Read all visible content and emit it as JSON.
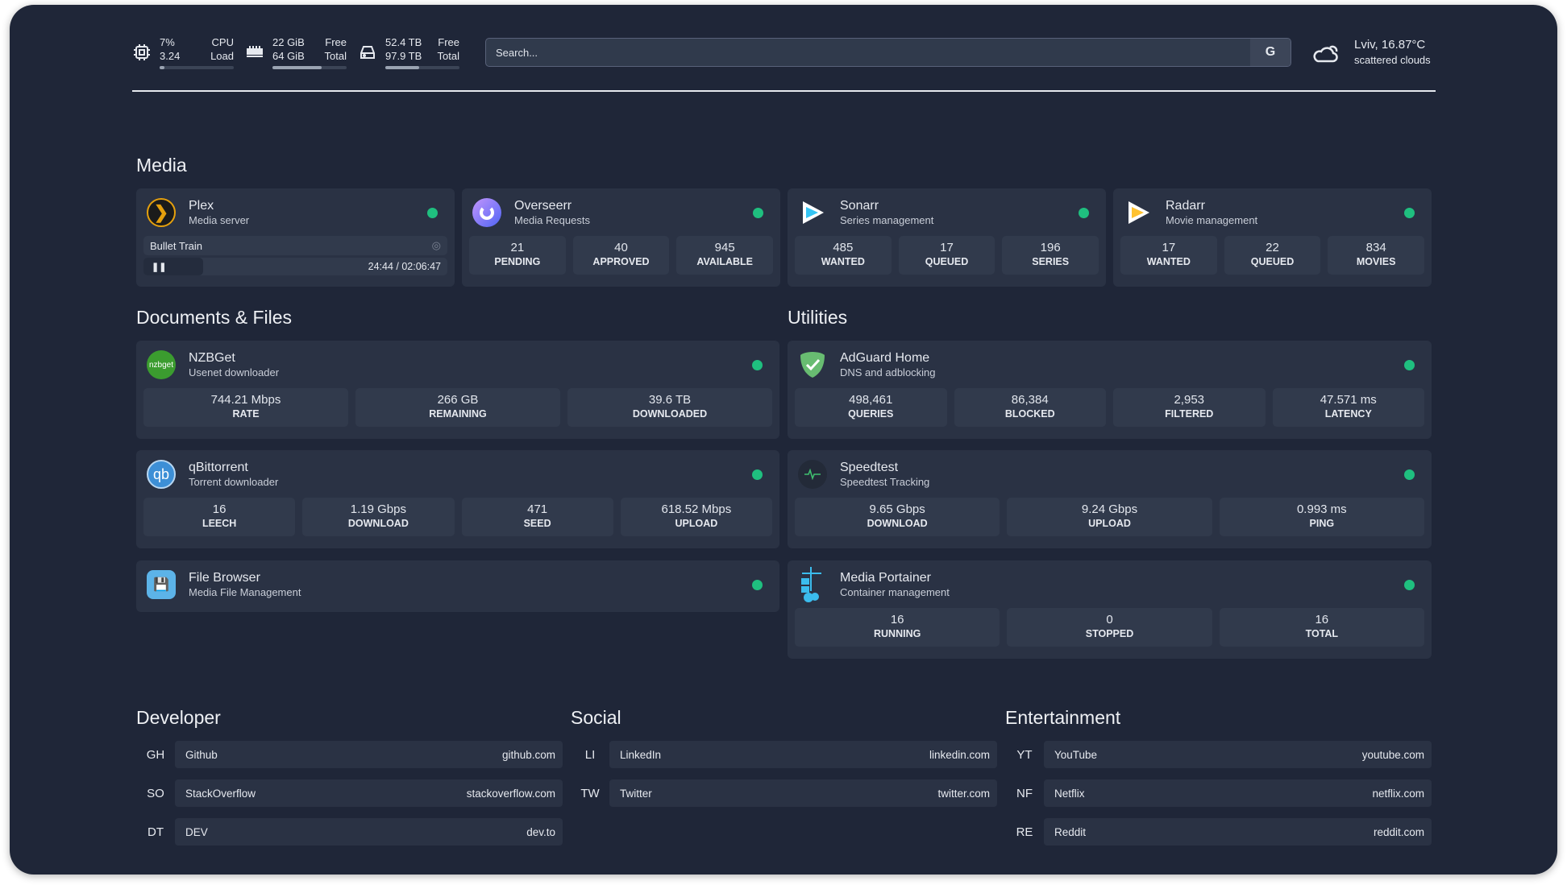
{
  "header": {
    "cpu": {
      "usage": "7%",
      "label1": "CPU",
      "load": "3.24",
      "label2": "Load",
      "bar_percent": 7
    },
    "memory": {
      "free": "22 GiB",
      "label1": "Free",
      "total": "64 GiB",
      "label2": "Total",
      "bar_percent": 66
    },
    "disk": {
      "free": "52.4 TB",
      "label1": "Free",
      "total": "97.9 TB",
      "label2": "Total",
      "bar_percent": 46
    },
    "search": {
      "placeholder": "Search...",
      "engine_button": "G"
    },
    "weather": {
      "location_temp": "Lviv, 16.87°C",
      "condition": "scattered clouds",
      "icon": "cloud-sun-icon"
    }
  },
  "status_color": "#1fbf7f",
  "media": {
    "title": "Media",
    "cards": [
      {
        "name": "Plex",
        "desc": "Media server",
        "now_playing": "Bullet Train",
        "time": "24:44 / 02:06:47",
        "progress_percent": 19.5
      },
      {
        "name": "Overseerr",
        "desc": "Media Requests",
        "stats": [
          {
            "v": "21",
            "l": "PENDING"
          },
          {
            "v": "40",
            "l": "APPROVED"
          },
          {
            "v": "945",
            "l": "AVAILABLE"
          }
        ]
      },
      {
        "name": "Sonarr",
        "desc": "Series management",
        "stats": [
          {
            "v": "485",
            "l": "WANTED"
          },
          {
            "v": "17",
            "l": "QUEUED"
          },
          {
            "v": "196",
            "l": "SERIES"
          }
        ]
      },
      {
        "name": "Radarr",
        "desc": "Movie management",
        "stats": [
          {
            "v": "17",
            "l": "WANTED"
          },
          {
            "v": "22",
            "l": "QUEUED"
          },
          {
            "v": "834",
            "l": "MOVIES"
          }
        ]
      }
    ]
  },
  "docs": {
    "title": "Documents & Files",
    "cards": [
      {
        "name": "NZBGet",
        "desc": "Usenet downloader",
        "logo": "nzbget",
        "stats": [
          {
            "v": "744.21 Mbps",
            "l": "RATE"
          },
          {
            "v": "266 GB",
            "l": "REMAINING"
          },
          {
            "v": "39.6 TB",
            "l": "DOWNLOADED"
          }
        ]
      },
      {
        "name": "qBittorrent",
        "desc": "Torrent downloader",
        "logo": "qb",
        "stats": [
          {
            "v": "16",
            "l": "LEECH"
          },
          {
            "v": "1.19 Gbps",
            "l": "DOWNLOAD"
          },
          {
            "v": "471",
            "l": "SEED"
          },
          {
            "v": "618.52 Mbps",
            "l": "UPLOAD"
          }
        ]
      },
      {
        "name": "File Browser",
        "desc": "Media File Management"
      }
    ]
  },
  "utilities": {
    "title": "Utilities",
    "cards": [
      {
        "name": "AdGuard Home",
        "desc": "DNS and adblocking",
        "stats": [
          {
            "v": "498,461",
            "l": "QUERIES"
          },
          {
            "v": "86,384",
            "l": "BLOCKED"
          },
          {
            "v": "2,953",
            "l": "FILTERED"
          },
          {
            "v": "47.571 ms",
            "l": "LATENCY"
          }
        ]
      },
      {
        "name": "Speedtest",
        "desc": "Speedtest Tracking",
        "stats": [
          {
            "v": "9.65 Gbps",
            "l": "DOWNLOAD"
          },
          {
            "v": "9.24 Gbps",
            "l": "UPLOAD"
          },
          {
            "v": "0.993 ms",
            "l": "PING"
          }
        ]
      },
      {
        "name": "Media Portainer",
        "desc": "Container management",
        "stats": [
          {
            "v": "16",
            "l": "RUNNING"
          },
          {
            "v": "0",
            "l": "STOPPED"
          },
          {
            "v": "16",
            "l": "TOTAL"
          }
        ]
      }
    ]
  },
  "bookmarks": [
    {
      "title": "Developer",
      "items": [
        {
          "ab": "GH",
          "name": "Github",
          "url": "github.com"
        },
        {
          "ab": "SO",
          "name": "StackOverflow",
          "url": "stackoverflow.com"
        },
        {
          "ab": "DT",
          "name": "DEV",
          "url": "dev.to"
        }
      ]
    },
    {
      "title": "Social",
      "items": [
        {
          "ab": "LI",
          "name": "LinkedIn",
          "url": "linkedin.com"
        },
        {
          "ab": "TW",
          "name": "Twitter",
          "url": "twitter.com"
        }
      ]
    },
    {
      "title": "Entertainment",
      "items": [
        {
          "ab": "YT",
          "name": "YouTube",
          "url": "youtube.com"
        },
        {
          "ab": "NF",
          "name": "Netflix",
          "url": "netflix.com"
        },
        {
          "ab": "RE",
          "name": "Reddit",
          "url": "reddit.com"
        }
      ]
    }
  ]
}
